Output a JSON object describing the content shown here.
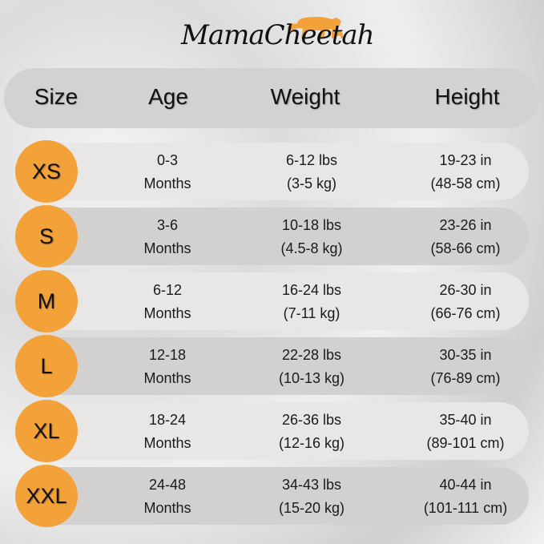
{
  "brand": {
    "name": "MamaCheetah",
    "accent_color": "#f3a23a"
  },
  "header": {
    "size": "Size",
    "age": "Age",
    "weight": "Weight",
    "height": "Height"
  },
  "rows": [
    {
      "size": "XS",
      "age": [
        "0-3",
        "Months"
      ],
      "weight": [
        "6-12 lbs",
        "(3-5 kg)"
      ],
      "height": [
        "19-23 in",
        "(48-58 cm)"
      ]
    },
    {
      "size": "S",
      "age": [
        "3-6",
        "Months"
      ],
      "weight": [
        "10-18 lbs",
        "(4.5-8 kg)"
      ],
      "height": [
        "23-26 in",
        "(58-66 cm)"
      ]
    },
    {
      "size": "M",
      "age": [
        "6-12",
        "Months"
      ],
      "weight": [
        "16-24 lbs",
        "(7-11 kg)"
      ],
      "height": [
        "26-30 in",
        "(66-76 cm)"
      ]
    },
    {
      "size": "L",
      "age": [
        "12-18",
        "Months"
      ],
      "weight": [
        "22-28 lbs",
        "(10-13 kg)"
      ],
      "height": [
        "30-35 in",
        "(76-89 cm)"
      ]
    },
    {
      "size": "XL",
      "age": [
        "18-24",
        "Months"
      ],
      "weight": [
        "26-36 lbs",
        "(12-16 kg)"
      ],
      "height": [
        "35-40 in",
        "(89-101 cm)"
      ]
    },
    {
      "size": "XXL",
      "age": [
        "24-48",
        "Months"
      ],
      "weight": [
        "34-43 lbs",
        "(15-20 kg)"
      ],
      "height": [
        "40-44 in",
        "(101-111 cm)"
      ]
    }
  ]
}
